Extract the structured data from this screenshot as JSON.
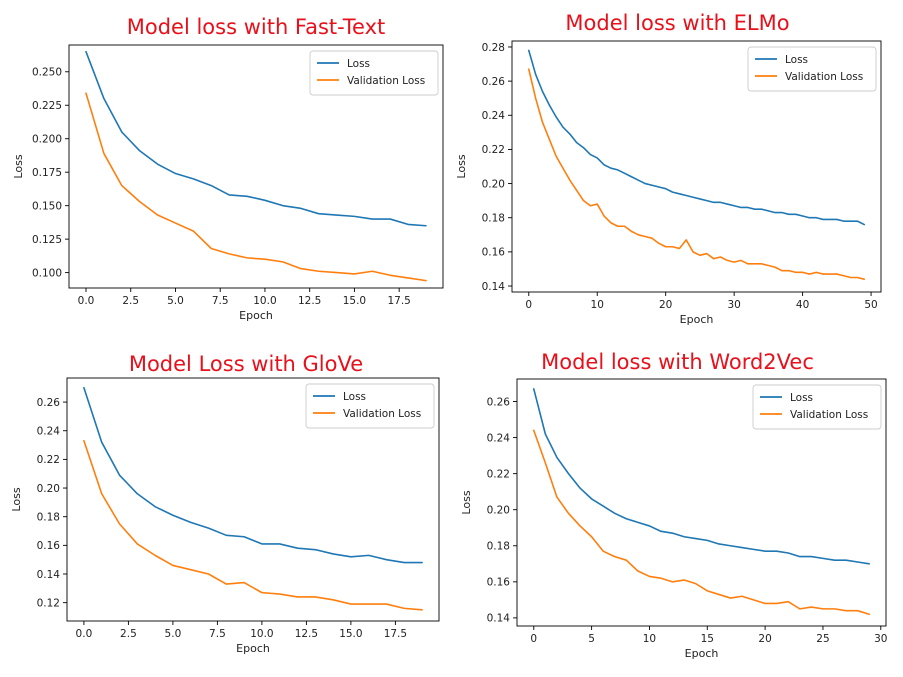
{
  "colors": {
    "loss": "#1f77b4",
    "validation_loss": "#ff7f0e",
    "title": "#e8101a"
  },
  "chart_data": [
    {
      "type": "line",
      "title": "Model loss with Fast-Text",
      "xlabel": "Epoch",
      "ylabel": "Loss",
      "xlim": [
        -0.95,
        19.95
      ],
      "ylim": [
        0.0885,
        0.27
      ],
      "xticks": [
        0,
        2.5,
        5,
        7.5,
        10,
        12.5,
        15,
        17.5
      ],
      "xtick_labels": [
        "0.0",
        "2.5",
        "5.0",
        "7.5",
        "10.0",
        "12.5",
        "15.0",
        "17.5"
      ],
      "yticks": [
        0.1,
        0.125,
        0.15,
        0.175,
        0.2,
        0.225,
        0.25
      ],
      "ytick_labels": [
        "0.100",
        "0.125",
        "0.150",
        "0.175",
        "0.200",
        "0.225",
        "0.250"
      ],
      "legend_position": "top-right",
      "x": [
        0,
        1,
        2,
        3,
        4,
        5,
        6,
        7,
        8,
        9,
        10,
        11,
        12,
        13,
        14,
        15,
        16,
        17,
        18,
        19
      ],
      "series": [
        {
          "name": "Loss",
          "values": [
            0.265,
            0.23,
            0.205,
            0.191,
            0.181,
            0.174,
            0.17,
            0.165,
            0.158,
            0.157,
            0.154,
            0.15,
            0.148,
            0.144,
            0.143,
            0.142,
            0.14,
            0.14,
            0.136,
            0.135
          ]
        },
        {
          "name": "Validation Loss",
          "values": [
            0.234,
            0.189,
            0.165,
            0.153,
            0.143,
            0.137,
            0.131,
            0.118,
            0.114,
            0.111,
            0.11,
            0.108,
            0.103,
            0.101,
            0.1,
            0.099,
            0.101,
            0.098,
            0.096,
            0.094
          ]
        }
      ]
    },
    {
      "type": "line",
      "title": "Model loss with ELMo",
      "xlabel": "Epoch",
      "ylabel": "Loss",
      "xlim": [
        -2.45,
        51.45
      ],
      "ylim": [
        0.1365,
        0.2835
      ],
      "xticks": [
        0,
        10,
        20,
        30,
        40,
        50
      ],
      "xtick_labels": [
        "0",
        "10",
        "20",
        "30",
        "40",
        "50"
      ],
      "yticks": [
        0.14,
        0.16,
        0.18,
        0.2,
        0.22,
        0.24,
        0.26,
        0.28
      ],
      "ytick_labels": [
        "0.14",
        "0.16",
        "0.18",
        "0.20",
        "0.22",
        "0.24",
        "0.26",
        "0.28"
      ],
      "legend_position": "top-right",
      "x": [
        0,
        1,
        2,
        3,
        4,
        5,
        6,
        7,
        8,
        9,
        10,
        11,
        12,
        13,
        14,
        15,
        16,
        17,
        18,
        19,
        20,
        21,
        22,
        23,
        24,
        25,
        26,
        27,
        28,
        29,
        30,
        31,
        32,
        33,
        34,
        35,
        36,
        37,
        38,
        39,
        40,
        41,
        42,
        43,
        44,
        45,
        46,
        47,
        48,
        49
      ],
      "series": [
        {
          "name": "Loss",
          "values": [
            0.278,
            0.264,
            0.254,
            0.246,
            0.239,
            0.233,
            0.229,
            0.224,
            0.221,
            0.217,
            0.215,
            0.211,
            0.209,
            0.208,
            0.206,
            0.204,
            0.202,
            0.2,
            0.199,
            0.198,
            0.197,
            0.195,
            0.194,
            0.193,
            0.192,
            0.191,
            0.19,
            0.189,
            0.189,
            0.188,
            0.187,
            0.186,
            0.186,
            0.185,
            0.185,
            0.184,
            0.183,
            0.183,
            0.182,
            0.182,
            0.181,
            0.18,
            0.18,
            0.179,
            0.179,
            0.179,
            0.178,
            0.178,
            0.178,
            0.176
          ]
        },
        {
          "name": "Validation Loss",
          "values": [
            0.267,
            0.25,
            0.236,
            0.226,
            0.216,
            0.209,
            0.202,
            0.196,
            0.19,
            0.187,
            0.188,
            0.181,
            0.177,
            0.175,
            0.175,
            0.172,
            0.17,
            0.169,
            0.168,
            0.165,
            0.163,
            0.163,
            0.162,
            0.167,
            0.16,
            0.158,
            0.159,
            0.156,
            0.157,
            0.155,
            0.154,
            0.155,
            0.153,
            0.153,
            0.153,
            0.152,
            0.151,
            0.149,
            0.149,
            0.148,
            0.148,
            0.147,
            0.148,
            0.147,
            0.147,
            0.147,
            0.146,
            0.145,
            0.145,
            0.144
          ]
        }
      ]
    },
    {
      "type": "line",
      "title": "Model Loss with GloVe",
      "xlabel": "Epoch",
      "ylabel": "Loss",
      "xlim": [
        -0.95,
        19.95
      ],
      "ylim": [
        0.1072,
        0.2768
      ],
      "xticks": [
        0,
        2.5,
        5,
        7.5,
        10,
        12.5,
        15,
        17.5
      ],
      "xtick_labels": [
        "0.0",
        "2.5",
        "5.0",
        "7.5",
        "10.0",
        "12.5",
        "15.0",
        "17.5"
      ],
      "yticks": [
        0.12,
        0.14,
        0.16,
        0.18,
        0.2,
        0.22,
        0.24,
        0.26
      ],
      "ytick_labels": [
        "0.12",
        "0.14",
        "0.16",
        "0.18",
        "0.20",
        "0.22",
        "0.24",
        "0.26"
      ],
      "legend_position": "top-right",
      "x": [
        0,
        1,
        2,
        3,
        4,
        5,
        6,
        7,
        8,
        9,
        10,
        11,
        12,
        13,
        14,
        15,
        16,
        17,
        18,
        19
      ],
      "series": [
        {
          "name": "Loss",
          "values": [
            0.27,
            0.232,
            0.209,
            0.196,
            0.187,
            0.181,
            0.176,
            0.172,
            0.167,
            0.166,
            0.161,
            0.161,
            0.158,
            0.157,
            0.154,
            0.152,
            0.153,
            0.15,
            0.148,
            0.148
          ]
        },
        {
          "name": "Validation Loss",
          "values": [
            0.233,
            0.196,
            0.175,
            0.161,
            0.153,
            0.146,
            0.143,
            0.14,
            0.133,
            0.134,
            0.127,
            0.126,
            0.124,
            0.124,
            0.122,
            0.119,
            0.119,
            0.119,
            0.116,
            0.115
          ]
        }
      ]
    },
    {
      "type": "line",
      "title": "Model loss with Word2Vec",
      "xlabel": "Epoch",
      "ylabel": "Loss",
      "xlim": [
        -1.45,
        30.45
      ],
      "ylim": [
        0.1355,
        0.2725
      ],
      "xticks": [
        0,
        5,
        10,
        15,
        20,
        25,
        30
      ],
      "xtick_labels": [
        "0",
        "5",
        "10",
        "15",
        "20",
        "25",
        "30"
      ],
      "yticks": [
        0.14,
        0.16,
        0.18,
        0.2,
        0.22,
        0.24,
        0.26
      ],
      "ytick_labels": [
        "0.14",
        "0.16",
        "0.18",
        "0.20",
        "0.22",
        "0.24",
        "0.26"
      ],
      "legend_position": "top-right",
      "x": [
        0,
        1,
        2,
        3,
        4,
        5,
        6,
        7,
        8,
        9,
        10,
        11,
        12,
        13,
        14,
        15,
        16,
        17,
        18,
        19,
        20,
        21,
        22,
        23,
        24,
        25,
        26,
        27,
        28,
        29
      ],
      "series": [
        {
          "name": "Loss",
          "values": [
            0.267,
            0.242,
            0.229,
            0.22,
            0.212,
            0.206,
            0.202,
            0.198,
            0.195,
            0.193,
            0.191,
            0.188,
            0.187,
            0.185,
            0.184,
            0.183,
            0.181,
            0.18,
            0.179,
            0.178,
            0.177,
            0.177,
            0.176,
            0.174,
            0.174,
            0.173,
            0.172,
            0.172,
            0.171,
            0.17
          ]
        },
        {
          "name": "Validation Loss",
          "values": [
            0.244,
            0.226,
            0.207,
            0.198,
            0.191,
            0.185,
            0.177,
            0.174,
            0.172,
            0.166,
            0.163,
            0.162,
            0.16,
            0.161,
            0.159,
            0.155,
            0.153,
            0.151,
            0.152,
            0.15,
            0.148,
            0.148,
            0.149,
            0.145,
            0.146,
            0.145,
            0.145,
            0.144,
            0.144,
            0.142
          ]
        }
      ]
    }
  ]
}
